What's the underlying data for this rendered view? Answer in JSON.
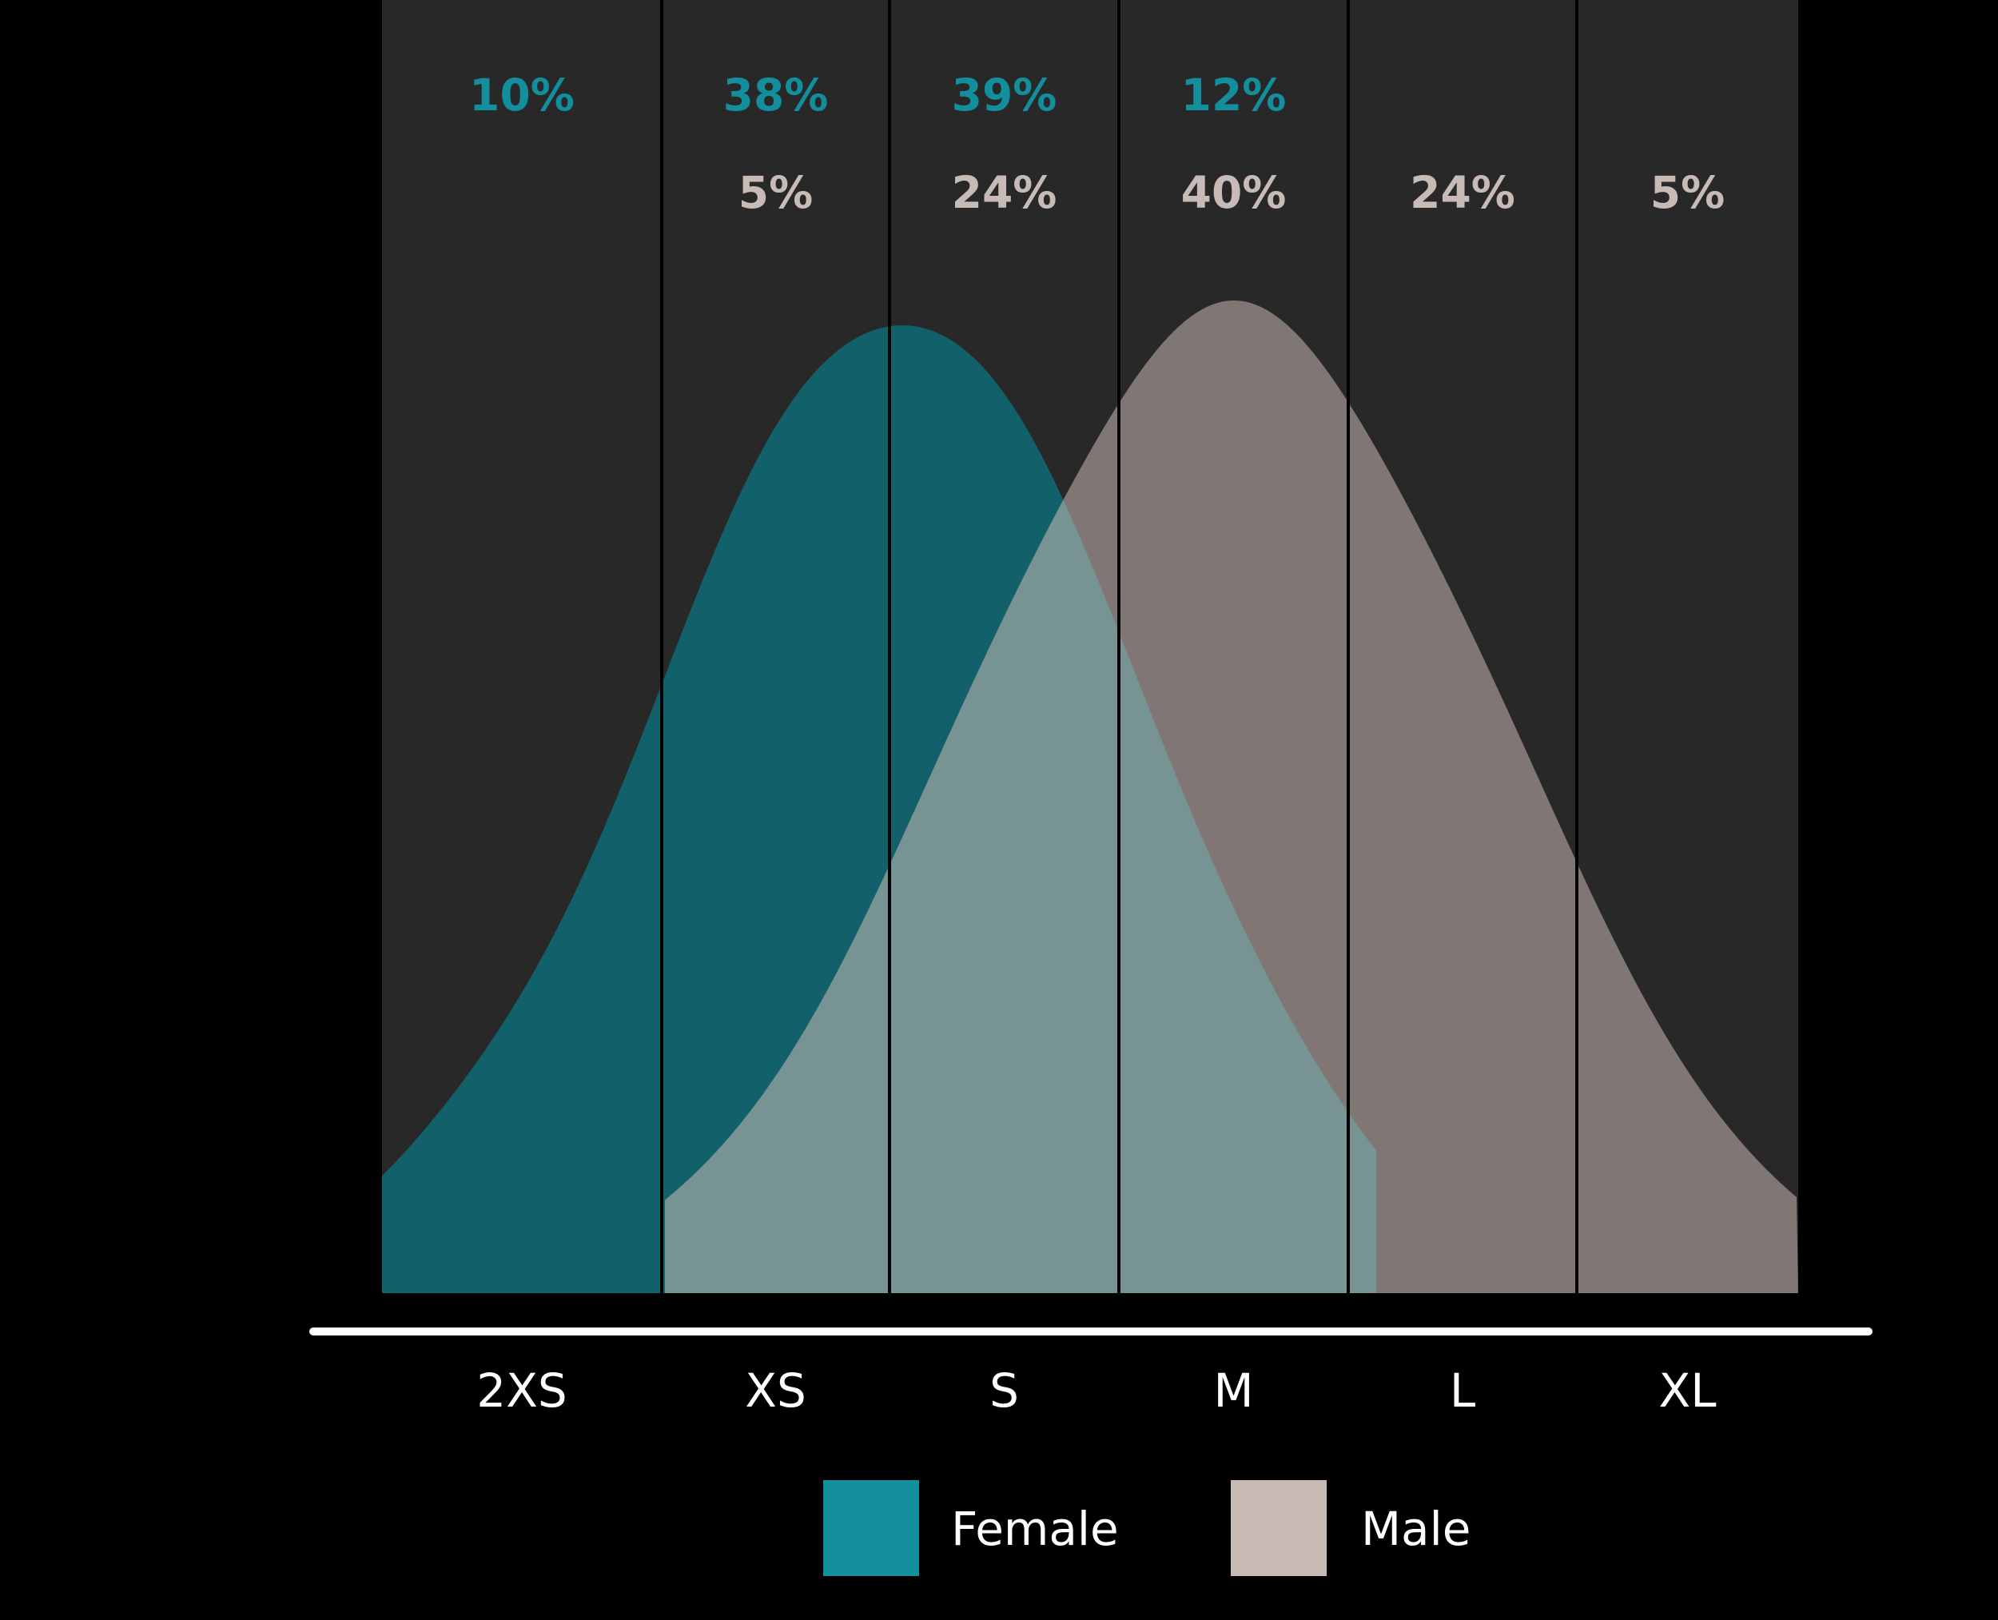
{
  "chart_data": {
    "type": "area",
    "categories": [
      "2XS",
      "XS",
      "S",
      "M",
      "L",
      "XL"
    ],
    "series": [
      {
        "name": "Female",
        "color": "#138e9c",
        "fill": "#12606a",
        "value_labels": [
          "10%",
          "38%",
          "39%",
          "12%",
          "",
          ""
        ],
        "values": [
          10,
          38,
          39,
          12,
          0,
          0
        ]
      },
      {
        "name": "Male",
        "color": "#c8bbb5",
        "fill": "#807774",
        "value_labels": [
          "",
          "5%",
          "24%",
          "40%",
          "24%",
          "5%"
        ],
        "values": [
          0,
          5,
          24,
          40,
          24,
          5
        ]
      }
    ],
    "overlap_fill": "#779393",
    "legend": {
      "position": "bottom-center",
      "items": [
        "Female",
        "Male"
      ]
    },
    "colors": {
      "background": "#000000",
      "plot_background": "#282828",
      "axis": "#ffffff",
      "divider": "#000000"
    },
    "grid": false
  }
}
